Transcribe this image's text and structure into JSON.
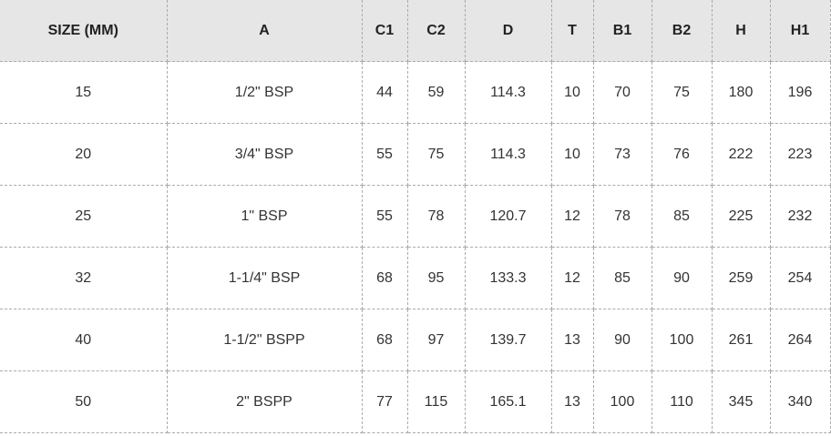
{
  "table": {
    "headers": [
      "SIZE (MM)",
      "A",
      "C1",
      "C2",
      "D",
      "T",
      "B1",
      "B2",
      "H",
      "H1"
    ],
    "rows": [
      [
        "15",
        "1/2\" BSP",
        "44",
        "59",
        "114.3",
        "10",
        "70",
        "75",
        "180",
        "196"
      ],
      [
        "20",
        "3/4\" BSP",
        "55",
        "75",
        "114.3",
        "10",
        "73",
        "76",
        "222",
        "223"
      ],
      [
        "25",
        "1\" BSP",
        "55",
        "78",
        "120.7",
        "12",
        "78",
        "85",
        "225",
        "232"
      ],
      [
        "32",
        "1-1/4\" BSP",
        "68",
        "95",
        "133.3",
        "12",
        "85",
        "90",
        "259",
        "254"
      ],
      [
        "40",
        "1-1/2\" BSPP",
        "68",
        "97",
        "139.7",
        "13",
        "90",
        "100",
        "261",
        "264"
      ],
      [
        "50",
        "2\" BSPP",
        "77",
        "115",
        "165.1",
        "13",
        "100",
        "110",
        "345",
        "340"
      ]
    ]
  }
}
